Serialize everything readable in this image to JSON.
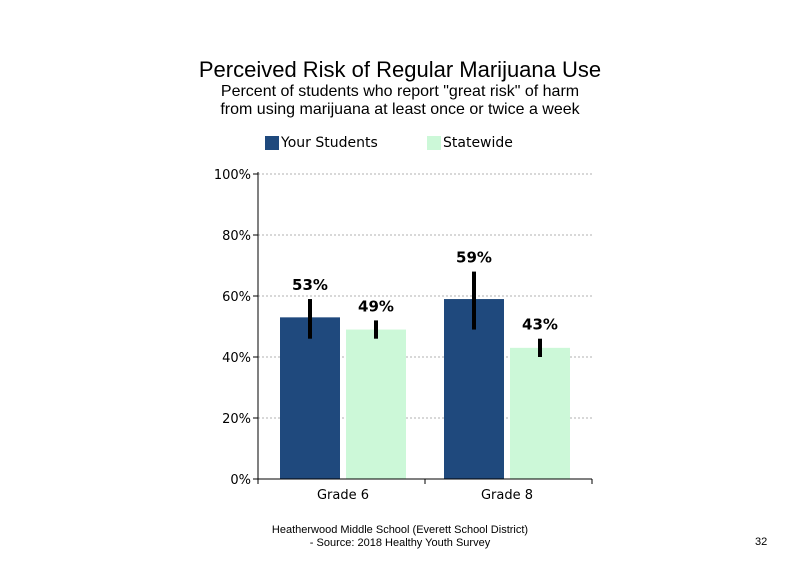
{
  "chart_data": {
    "type": "bar",
    "title": "Perceived Risk of Regular Marijuana Use",
    "subtitle_lines": [
      "Percent of students  who report \"great risk\" of harm",
      "from using marijuana at least once or twice a week"
    ],
    "categories": [
      "Grade 6",
      "Grade 8"
    ],
    "series": [
      {
        "name": "Your Students",
        "color": "#1f497d",
        "values": [
          53,
          59
        ],
        "labels": [
          "53%",
          "59%"
        ],
        "error_low": [
          46,
          49
        ],
        "error_high": [
          59,
          68
        ]
      },
      {
        "name": "Statewide",
        "color": "#ccf8d8",
        "values": [
          49,
          43
        ],
        "labels": [
          "49%",
          "43%"
        ],
        "error_low": [
          46,
          40
        ],
        "error_high": [
          52,
          46
        ]
      }
    ],
    "y_ticks": [
      "0%",
      "20%",
      "40%",
      "60%",
      "80%",
      "100%"
    ],
    "ylim": [
      0,
      100
    ],
    "grid": "horizontal dotted",
    "legend_position": "top"
  },
  "footer": {
    "line1": "Heatherwood Middle School (Everett School District)",
    "line2": "- Source: 2018 Healthy  Youth Survey"
  },
  "page_number": "32"
}
